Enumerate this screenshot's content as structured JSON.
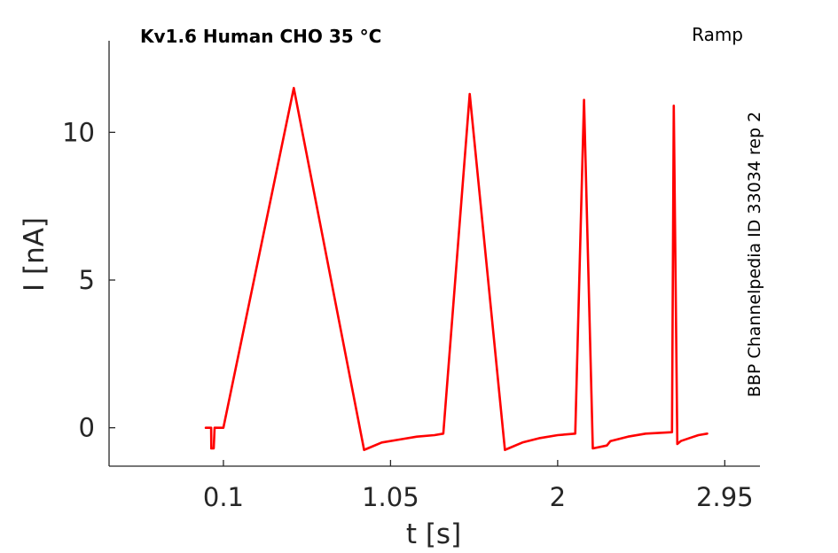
{
  "chart_data": {
    "type": "line",
    "title": "Kv1.6  Human  CHO  35 °C",
    "protocol": "Ramp",
    "side_label": "BBP Channelpedia ID 33034 rep 2",
    "xlabel": "t [s]",
    "ylabel": "I [nA]",
    "xlim": [
      -0.55,
      3.15
    ],
    "ylim": [
      -1.3,
      13.1
    ],
    "xticks": [
      0.1,
      1.05,
      2,
      2.95
    ],
    "xtick_labels": [
      "0.1",
      "1.05",
      "2",
      "2.95"
    ],
    "yticks": [
      0,
      5,
      10
    ],
    "ytick_labels": [
      "0",
      "5",
      "10"
    ],
    "grid": false,
    "legend": "none",
    "series": [
      {
        "color": "#ff0000",
        "x": [
          -0.0,
          0.03,
          0.031,
          0.045,
          0.05,
          0.052,
          0.1,
          0.5,
          0.9,
          0.92,
          1.0,
          1.1,
          1.2,
          1.3,
          1.35,
          1.5,
          1.7,
          1.72,
          1.8,
          1.9,
          2.0,
          2.1,
          2.15,
          2.2,
          2.28,
          2.3,
          2.4,
          2.5,
          2.65,
          2.66,
          2.68,
          2.7,
          2.75,
          2.8,
          2.85
        ],
        "y": [
          0.0,
          0.0,
          -0.7,
          -0.7,
          0.0,
          0.0,
          0.0,
          11.5,
          -0.75,
          -0.7,
          -0.5,
          -0.4,
          -0.3,
          -0.25,
          -0.2,
          11.3,
          -0.75,
          -0.7,
          -0.5,
          -0.35,
          -0.25,
          -0.2,
          11.1,
          -0.7,
          -0.6,
          -0.45,
          -0.3,
          -0.2,
          -0.15,
          10.9,
          -0.55,
          -0.45,
          -0.35,
          -0.25,
          -0.2
        ]
      }
    ]
  }
}
